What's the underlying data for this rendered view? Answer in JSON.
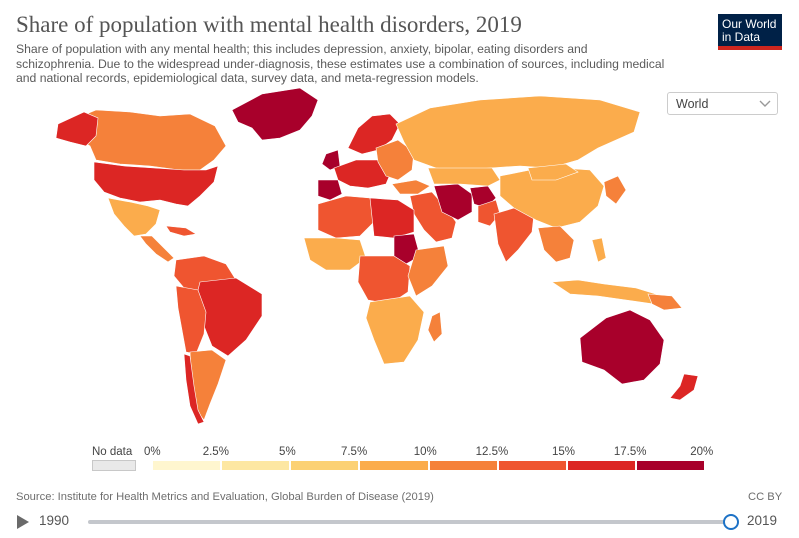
{
  "header": {
    "title": "Share of population with mental health disorders, 2019",
    "subtitle": "Share of population with any mental health; this includes depression, anxiety, bipolar, eating disorders and schizophrenia. Due to the widespread under-diagnosis, these estimates use a combination of sources, including medical and national records, epidemiological data, survey data, and meta-regression models."
  },
  "logo": {
    "line1": "Our World",
    "line2": "in Data"
  },
  "entity_selector": {
    "value": "World",
    "icon": "chevron-down-icon"
  },
  "legend": {
    "no_data_label": "No data",
    "thresholds": [
      "0%",
      "2.5%",
      "5%",
      "7.5%",
      "10%",
      "12.5%",
      "15%",
      "17.5%",
      "20%"
    ],
    "colors": [
      "#fff6cf",
      "#fde7a2",
      "#fcd174",
      "#fbac4c",
      "#f5813a",
      "#ef5530",
      "#dc2624",
      "#a8002b"
    ],
    "no_data_color": "#e9e9e9"
  },
  "footer": {
    "source": "Source: Institute for Health Metrics and Evaluation, Global Burden of Disease (2019)",
    "license": "CC BY"
  },
  "timeline": {
    "start_year": "1990",
    "end_year": "2019",
    "selected_year": "2019",
    "play_icon": "play-icon"
  }
}
